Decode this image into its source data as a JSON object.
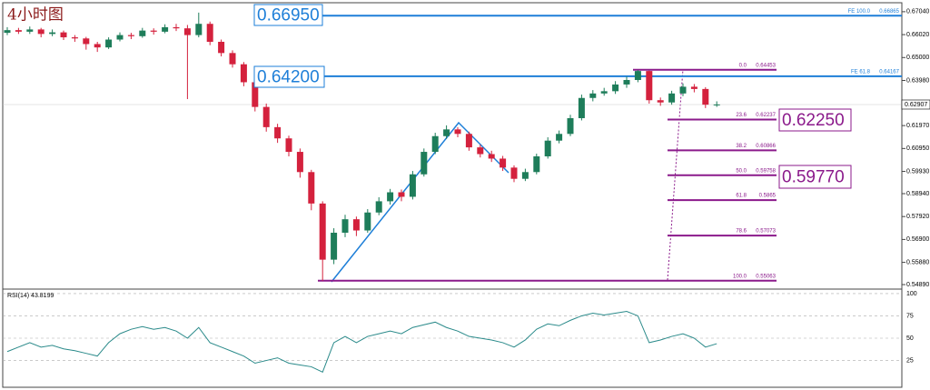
{
  "chart_data": [
    {
      "type": "candlestick",
      "title": "4小时图",
      "open": [
        0.661,
        0.6622,
        0.6615,
        0.6625,
        0.6605,
        0.6612,
        0.659,
        0.6585,
        0.656,
        0.6545,
        0.658,
        0.66,
        0.6595,
        0.662,
        0.6615,
        0.6635,
        0.663,
        0.66,
        0.665,
        0.657,
        0.652,
        0.647,
        0.639,
        0.628,
        0.619,
        0.614,
        0.608,
        0.599,
        0.585,
        0.56,
        0.572,
        0.578,
        0.573,
        0.581,
        0.586,
        0.59,
        0.588,
        0.598,
        0.608,
        0.615,
        0.618,
        0.616,
        0.61,
        0.607,
        0.605,
        0.601,
        0.596,
        0.599,
        0.606,
        0.613,
        0.616,
        0.623,
        0.632,
        0.634,
        0.635,
        0.638,
        0.64,
        0.644,
        0.631,
        0.63,
        0.634,
        0.637,
        0.636,
        0.629
      ],
      "high": [
        0.6635,
        0.6632,
        0.6638,
        0.6632,
        0.6625,
        0.662,
        0.66,
        0.6592,
        0.657,
        0.659,
        0.6612,
        0.661,
        0.6632,
        0.663,
        0.6648,
        0.665,
        0.6645,
        0.67,
        0.666,
        0.658,
        0.6532,
        0.648,
        0.64,
        0.6295,
        0.6205,
        0.6152,
        0.6095,
        0.6,
        0.586,
        0.574,
        0.58,
        0.5792,
        0.5825,
        0.5878,
        0.5915,
        0.5912,
        0.5995,
        0.6095,
        0.6165,
        0.6198,
        0.619,
        0.617,
        0.6112,
        0.6085,
        0.6062,
        0.602,
        0.6005,
        0.6072,
        0.6145,
        0.6175,
        0.6245,
        0.6335,
        0.6355,
        0.6365,
        0.6395,
        0.6415,
        0.6445,
        0.6442,
        0.6322,
        0.6352,
        0.6385,
        0.6382,
        0.6368,
        0.6305
      ],
      "low": [
        0.66,
        0.6605,
        0.6605,
        0.659,
        0.6595,
        0.6578,
        0.657,
        0.6535,
        0.6525,
        0.6538,
        0.6572,
        0.6582,
        0.6588,
        0.6602,
        0.6608,
        0.6618,
        0.6315,
        0.659,
        0.6555,
        0.6505,
        0.6455,
        0.6372,
        0.626,
        0.617,
        0.612,
        0.606,
        0.5965,
        0.582,
        0.5506,
        0.558,
        0.57,
        0.5705,
        0.572,
        0.5798,
        0.5845,
        0.586,
        0.5868,
        0.597,
        0.607,
        0.6138,
        0.6145,
        0.6085,
        0.6055,
        0.6035,
        0.5995,
        0.5945,
        0.595,
        0.598,
        0.605,
        0.6118,
        0.615,
        0.622,
        0.6305,
        0.633,
        0.6338,
        0.6365,
        0.639,
        0.6295,
        0.6285,
        0.629,
        0.6328,
        0.6345,
        0.6275,
        0.628
      ],
      "close": [
        0.6622,
        0.6615,
        0.6625,
        0.6605,
        0.6612,
        0.659,
        0.6585,
        0.656,
        0.6545,
        0.658,
        0.66,
        0.6595,
        0.662,
        0.6615,
        0.6635,
        0.663,
        0.66,
        0.665,
        0.657,
        0.652,
        0.647,
        0.639,
        0.628,
        0.619,
        0.614,
        0.608,
        0.599,
        0.585,
        0.56,
        0.572,
        0.578,
        0.573,
        0.581,
        0.586,
        0.59,
        0.588,
        0.598,
        0.608,
        0.615,
        0.618,
        0.616,
        0.61,
        0.607,
        0.605,
        0.601,
        0.596,
        0.599,
        0.606,
        0.613,
        0.616,
        0.623,
        0.632,
        0.634,
        0.635,
        0.638,
        0.64,
        0.644,
        0.631,
        0.63,
        0.634,
        0.637,
        0.636,
        0.629,
        0.6291
      ],
      "up_color": "#1e7d5a",
      "down_color": "#d4213d",
      "ylim": [
        0.5469,
        0.6744
      ],
      "yticks": [
        {
          "value": 0.6704,
          "label": "0.67040"
        },
        {
          "value": 0.6602,
          "label": "0.66020"
        },
        {
          "value": 0.65,
          "label": "0.65000"
        },
        {
          "value": 0.6398,
          "label": "0.63980"
        },
        {
          "value": 0.6197,
          "label": "0.61970"
        },
        {
          "value": 0.6095,
          "label": "0.60950"
        },
        {
          "value": 0.5993,
          "label": "0.59930"
        },
        {
          "value": 0.5894,
          "label": "0.58940"
        },
        {
          "value": 0.5792,
          "label": "0.57920"
        },
        {
          "value": 0.569,
          "label": "0.56900"
        },
        {
          "value": 0.5588,
          "label": "0.55880"
        },
        {
          "value": 0.5489,
          "label": "0.54890"
        }
      ],
      "current_price": 0.62907,
      "fib_color": "#8b1a8b",
      "fib_levels": [
        {
          "ratio": "0.0",
          "value": 0.64453
        },
        {
          "ratio": "23.6",
          "value": 0.62237
        },
        {
          "ratio": "38.2",
          "value": 0.60866
        },
        {
          "ratio": "50.0",
          "value": 0.59758
        },
        {
          "ratio": "61.8",
          "value": 0.5865
        },
        {
          "ratio": "78.6",
          "value": 0.57073
        },
        {
          "ratio": "100.0",
          "value": 0.55063
        }
      ],
      "fe_color": "#1e7fd8",
      "fe_levels": [
        {
          "ratio": "FE 100.0",
          "value": 0.66865
        },
        {
          "ratio": "FE 61.8",
          "value": 0.64167
        }
      ],
      "annotations": [
        "0.66950",
        "0.64200",
        "0.62250",
        "0.59770"
      ]
    },
    {
      "type": "line",
      "title": "RSI(14) 43.8199",
      "color": "#2a8a8a",
      "values": [
        35,
        40,
        45,
        40,
        42,
        38,
        36,
        33,
        30,
        45,
        55,
        60,
        63,
        60,
        62,
        58,
        50,
        62,
        45,
        40,
        35,
        30,
        22,
        25,
        28,
        22,
        20,
        18,
        12,
        45,
        52,
        45,
        52,
        55,
        58,
        55,
        62,
        65,
        68,
        62,
        58,
        52,
        50,
        48,
        45,
        40,
        48,
        60,
        66,
        64,
        70,
        75,
        78,
        76,
        78,
        80,
        75,
        45,
        48,
        52,
        55,
        50,
        40,
        43.8199
      ],
      "ylim": [
        -5,
        104
      ],
      "yticks": [
        100,
        75,
        50,
        25
      ],
      "grid": true
    }
  ]
}
